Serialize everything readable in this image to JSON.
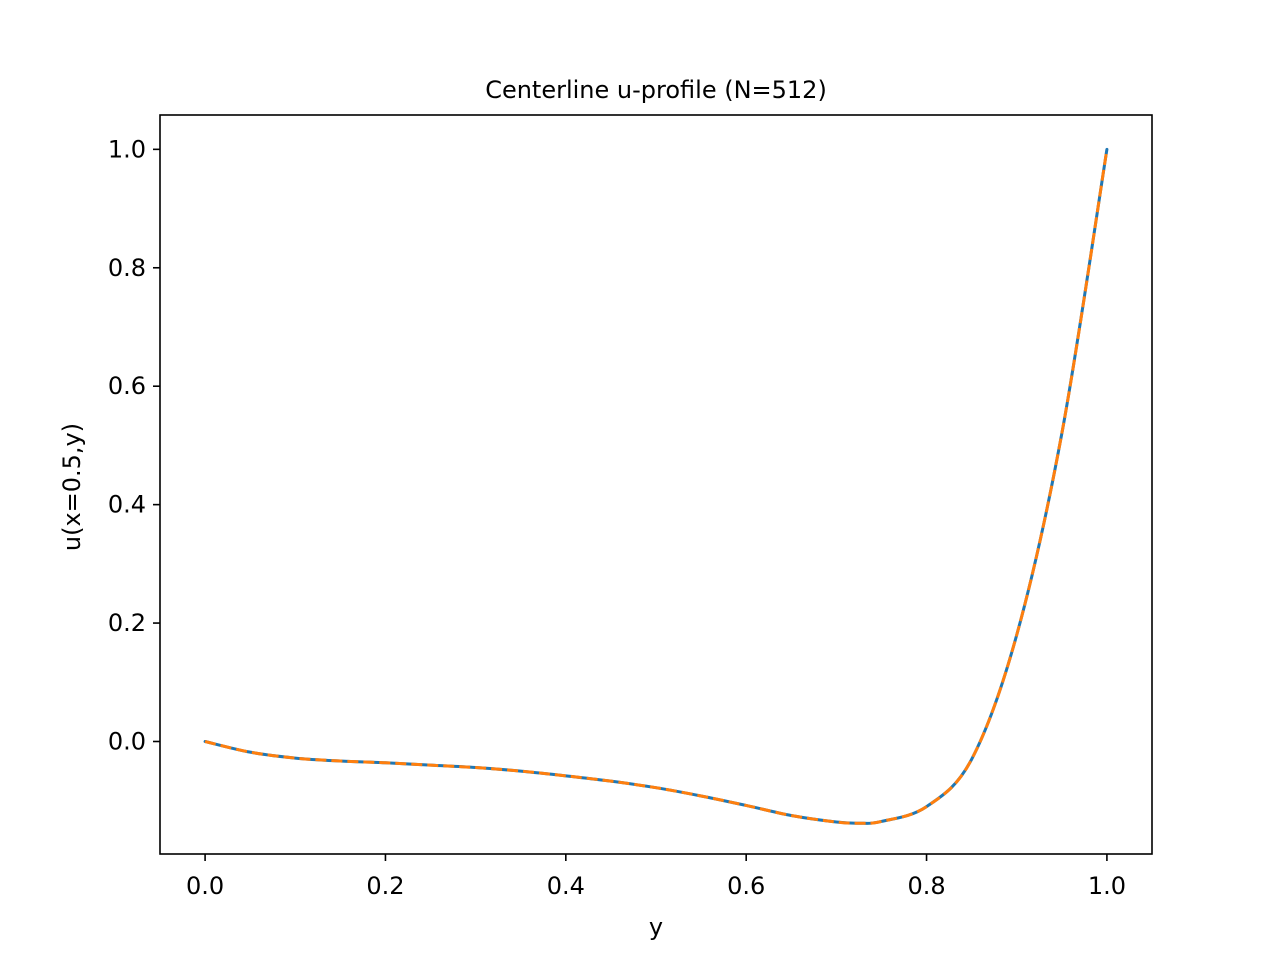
{
  "chart_data": {
    "type": "line",
    "title": "Centerline u-profile (N=512)",
    "xlabel": "y",
    "ylabel": "u(x=0.5,y)",
    "xlim": [
      -0.05,
      1.05
    ],
    "ylim": [
      -0.19,
      1.058
    ],
    "xticks": [
      0.0,
      0.2,
      0.4,
      0.6,
      0.8,
      1.0
    ],
    "xtick_labels": [
      "0.0",
      "0.2",
      "0.4",
      "0.6",
      "0.8",
      "1.0"
    ],
    "yticks": [
      0.0,
      0.2,
      0.4,
      0.6,
      0.8,
      1.0
    ],
    "ytick_labels": [
      "0.0",
      "0.2",
      "0.4",
      "0.6",
      "0.8",
      "1.0"
    ],
    "grid": false,
    "legend": false,
    "series": [
      {
        "color": "#1f77b4",
        "linestyle": "solid",
        "x": [
          0.0,
          0.05,
          0.1,
          0.15,
          0.2,
          0.25,
          0.3,
          0.35,
          0.4,
          0.45,
          0.5,
          0.55,
          0.6,
          0.65,
          0.7,
          0.725,
          0.75,
          0.8,
          0.85,
          0.9,
          0.95,
          1.0
        ],
        "y": [
          0.0,
          -0.018,
          -0.028,
          -0.033,
          -0.036,
          -0.04,
          -0.044,
          -0.05,
          -0.058,
          -0.067,
          -0.078,
          -0.092,
          -0.108,
          -0.125,
          -0.136,
          -0.138,
          -0.135,
          -0.11,
          -0.03,
          0.18,
          0.52,
          1.0
        ]
      },
      {
        "color": "#ff7f0e",
        "linestyle": "dashed",
        "x": [
          0.0,
          0.05,
          0.1,
          0.15,
          0.2,
          0.25,
          0.3,
          0.35,
          0.4,
          0.45,
          0.5,
          0.55,
          0.6,
          0.65,
          0.7,
          0.725,
          0.75,
          0.8,
          0.85,
          0.9,
          0.95,
          1.0
        ],
        "y": [
          0.0,
          -0.018,
          -0.028,
          -0.033,
          -0.036,
          -0.04,
          -0.044,
          -0.05,
          -0.058,
          -0.067,
          -0.078,
          -0.092,
          -0.108,
          -0.125,
          -0.136,
          -0.138,
          -0.135,
          -0.11,
          -0.03,
          0.18,
          0.52,
          1.0
        ]
      }
    ]
  }
}
